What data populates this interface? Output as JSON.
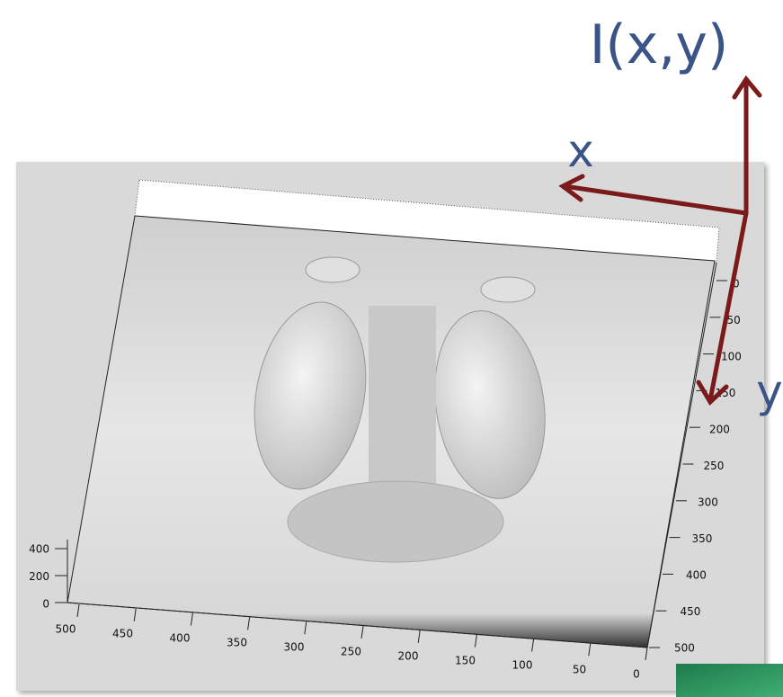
{
  "annotations": {
    "intensity": "I(x,y)",
    "x": "x",
    "y": "y"
  },
  "plot": {
    "z_ticks": [
      "0",
      "200",
      "400"
    ],
    "x_ticks": [
      "500",
      "450",
      "400",
      "350",
      "300",
      "250",
      "200",
      "150",
      "100",
      "50",
      "0"
    ],
    "y_ticks": [
      "0",
      "50",
      "100",
      "150",
      "200",
      "250",
      "300",
      "350",
      "400",
      "450",
      "500"
    ]
  }
}
